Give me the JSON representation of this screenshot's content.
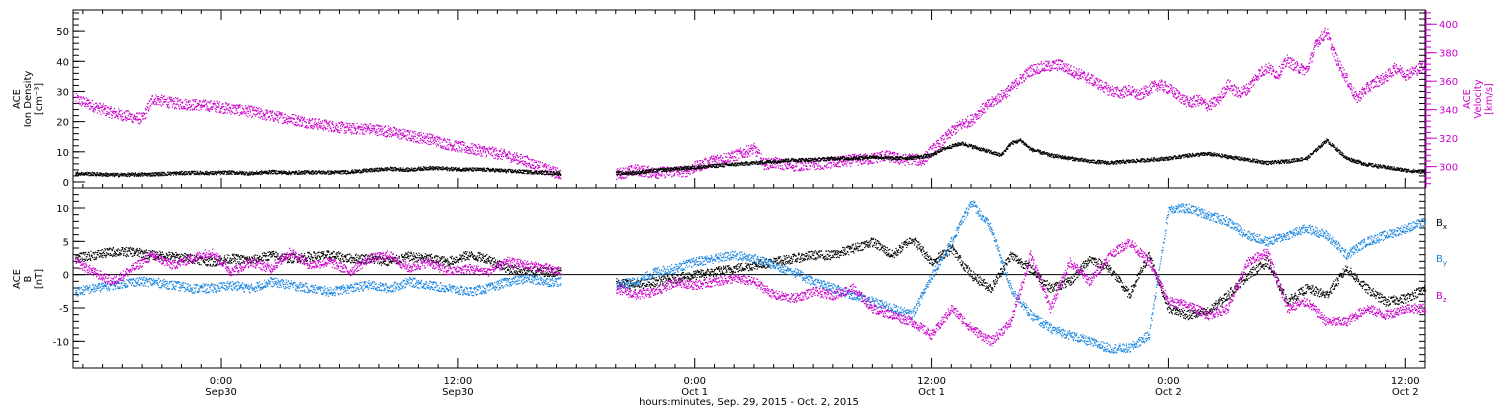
{
  "colors": {
    "black": "#000000",
    "magenta": "#cc00cc",
    "blue": "#1a86e0",
    "axis": "#000000"
  },
  "footer_label": "hours:minutes, Sep. 29, 2015 - Oct. 2, 2015",
  "time_axis": {
    "range_hours_from_sep29_00": [
      16.5,
      85.0
    ],
    "major_ticks": [
      {
        "hour": 24,
        "time": "0:00",
        "date": "Sep30"
      },
      {
        "hour": 36,
        "time": "12:00",
        "date": "Sep30"
      },
      {
        "hour": 48,
        "time": "0:00",
        "date": "Oct 1"
      },
      {
        "hour": 60,
        "time": "12:00",
        "date": "Oct 1"
      },
      {
        "hour": 72,
        "time": "0:00",
        "date": "Oct 2"
      },
      {
        "hour": 84,
        "time": "12:00",
        "date": "Oct 2"
      }
    ]
  },
  "chart_data": [
    {
      "type": "scatter",
      "panel": "top",
      "title": "",
      "ylabel": [
        "ACE",
        "Ion Density",
        "[cm⁻³]"
      ],
      "ylabel_right": [
        "ACE",
        "Velocity",
        "[km/s]"
      ],
      "ylim": [
        -2,
        57
      ],
      "yticks": [
        0,
        10,
        20,
        30,
        40,
        50
      ],
      "ylim_right": [
        285,
        410
      ],
      "yticks_right": [
        300,
        320,
        340,
        360,
        380,
        400
      ],
      "series": [
        {
          "color": "magenta",
          "axis": "right",
          "x": [
            16.6,
            17.5,
            18.5,
            19.5,
            20.0,
            20.5,
            21.5,
            22.5,
            23.5,
            24.5,
            25.5,
            26.5,
            27.5,
            28.5,
            29.5,
            30.5,
            31.5,
            32.5,
            33.5,
            34.5,
            35.5,
            36.5,
            37.5,
            38.5,
            39.5,
            40.0,
            40.5,
            41.2,
            44.0,
            45.0,
            46.0,
            47.0,
            47.5,
            48.0,
            49.0,
            50.0,
            51.0,
            51.5,
            52.0,
            53.0,
            54.0,
            55.0,
            56.0,
            57.0,
            57.5,
            58.0,
            58.5,
            59.0,
            59.5,
            60.0,
            60.5,
            61.0,
            61.5,
            62.0,
            62.5,
            63.0,
            63.5,
            64.0,
            64.5,
            65.0,
            65.5,
            66.0,
            66.5,
            67.0,
            67.5,
            68.0,
            68.5,
            69.0,
            69.5,
            70.0,
            70.5,
            71.0,
            71.5,
            72.0,
            72.5,
            73.0,
            73.5,
            74.0,
            74.5,
            75.0,
            75.5,
            76.0,
            76.5,
            77.0,
            77.5,
            78.0,
            78.5,
            79.0,
            79.5,
            80.0,
            80.5,
            81.0,
            81.5,
            82.0,
            82.5,
            83.0,
            83.5,
            84.0,
            84.5,
            85.0
          ],
          "y": [
            348,
            343,
            338,
            335,
            334,
            348,
            345,
            344,
            343,
            341,
            339,
            336,
            334,
            331,
            329,
            327,
            327,
            325,
            322,
            320,
            316,
            313,
            311,
            308,
            304,
            301,
            298,
            295,
            295,
            298,
            296,
            297,
            297,
            300,
            305,
            308,
            313,
            302,
            303,
            301,
            302,
            303,
            305,
            306,
            308,
            307,
            305,
            306,
            304,
            312,
            318,
            325,
            330,
            333,
            340,
            345,
            350,
            355,
            362,
            368,
            370,
            371,
            372,
            368,
            365,
            362,
            358,
            354,
            352,
            354,
            350,
            355,
            358,
            355,
            350,
            345,
            347,
            343,
            347,
            358,
            352,
            355,
            365,
            370,
            365,
            375,
            370,
            368,
            388,
            395,
            375,
            362,
            348,
            355,
            360,
            363,
            370,
            365,
            368,
            372
          ]
        },
        {
          "color": "black",
          "axis": "left",
          "x": [
            16.6,
            17.5,
            18.5,
            19.5,
            20.5,
            21.5,
            22.5,
            23.5,
            24.5,
            25.5,
            26.5,
            27.5,
            28.5,
            29.5,
            30.5,
            31.5,
            32.5,
            33.5,
            34.5,
            35.5,
            36.5,
            37.5,
            38.5,
            39.5,
            40.5,
            41.2,
            44.0,
            45.0,
            46.0,
            47.0,
            48.0,
            49.0,
            50.0,
            51.0,
            52.0,
            53.0,
            54.0,
            55.0,
            56.0,
            57.0,
            58.0,
            59.0,
            60.0,
            60.5,
            61.0,
            61.5,
            62.0,
            62.5,
            63.0,
            63.5,
            64.0,
            64.5,
            65.0,
            66.0,
            67.0,
            68.0,
            69.0,
            70.0,
            71.0,
            72.0,
            73.0,
            74.0,
            75.0,
            76.0,
            77.0,
            78.0,
            79.0,
            80.0,
            81.0,
            82.0,
            83.0,
            84.0,
            85.0
          ],
          "y": [
            3,
            2.8,
            2.5,
            2.6,
            2.7,
            3.0,
            3.2,
            3.1,
            3.3,
            3.0,
            3.5,
            3.2,
            3.4,
            3.3,
            3.5,
            4.0,
            4.5,
            4.2,
            4.8,
            4.5,
            4.3,
            4.2,
            3.8,
            3.5,
            3.2,
            3.0,
            3.0,
            3.2,
            4.0,
            4.5,
            5.0,
            5.5,
            6.0,
            6.5,
            7.0,
            7.5,
            7.5,
            8.0,
            8.0,
            8.5,
            8.0,
            8.2,
            9.0,
            11.0,
            12.0,
            13.0,
            12.0,
            11.0,
            10.0,
            9.0,
            13.0,
            14.0,
            11.0,
            9.0,
            8.0,
            7.0,
            6.5,
            7.0,
            7.5,
            8.0,
            9.0,
            9.5,
            8.5,
            7.5,
            6.5,
            7.0,
            8.0,
            14.0,
            8.0,
            6.0,
            5.0,
            4.0,
            3.5
          ]
        }
      ],
      "gaps": [
        [
          41.2,
          44.0
        ]
      ]
    },
    {
      "type": "scatter",
      "panel": "bottom",
      "title": "",
      "ylabel": [
        "ACE",
        "B",
        "[nT]"
      ],
      "ylim": [
        -14,
        13
      ],
      "yticks": [
        -10,
        -5,
        0,
        5,
        10
      ],
      "zero_line": true,
      "legend_position": "right",
      "series": [
        {
          "name": "Bx",
          "color": "black",
          "x": [
            16.6,
            17.5,
            18.5,
            19.5,
            20.5,
            21.5,
            22.5,
            23.5,
            24.5,
            25.5,
            26.5,
            27.5,
            28.5,
            29.5,
            30.5,
            31.5,
            32.5,
            33.5,
            34.5,
            35.5,
            36.5,
            37.5,
            38.5,
            39.5,
            40.5,
            41.2,
            44.0,
            45.0,
            46.0,
            47.0,
            48.0,
            49.0,
            50.0,
            51.0,
            52.0,
            53.0,
            54.0,
            55.0,
            56.0,
            57.0,
            58.0,
            59.0,
            60.0,
            61.0,
            62.0,
            63.0,
            64.0,
            65.0,
            66.0,
            67.0,
            68.0,
            69.0,
            70.0,
            71.0,
            72.0,
            73.0,
            74.0,
            75.0,
            76.0,
            77.0,
            78.0,
            79.0,
            80.0,
            81.0,
            82.0,
            83.0,
            84.0,
            85.0
          ],
          "y": [
            2.5,
            3.0,
            3.5,
            3.5,
            3.0,
            2.8,
            2.5,
            2.0,
            2.5,
            2.2,
            3.0,
            2.5,
            2.8,
            3.0,
            2.5,
            2.5,
            2.0,
            2.8,
            2.5,
            2.0,
            3.0,
            2.5,
            1.0,
            0.5,
            0.5,
            0.5,
            -1.0,
            -1.5,
            -1.0,
            -0.5,
            0.0,
            0.5,
            1.0,
            1.5,
            2.0,
            2.5,
            3.0,
            3.0,
            4.0,
            5.0,
            3.0,
            5.5,
            2.0,
            4.0,
            0.0,
            -2.0,
            3.0,
            1.0,
            -2.0,
            -1.0,
            2.5,
            1.0,
            -3.0,
            3.0,
            -5.0,
            -6.0,
            -5.5,
            -3.0,
            0.0,
            2.0,
            -4.0,
            -2.0,
            -3.0,
            1.0,
            -2.0,
            -4.0,
            -3.5,
            -2.0
          ]
        },
        {
          "name": "By",
          "color": "blue",
          "x": [
            16.6,
            17.5,
            18.5,
            19.5,
            20.5,
            21.5,
            22.5,
            23.5,
            24.5,
            25.5,
            26.5,
            27.5,
            28.5,
            29.5,
            30.5,
            31.5,
            32.5,
            33.5,
            34.5,
            35.5,
            36.5,
            37.5,
            38.5,
            39.5,
            40.5,
            41.2,
            44.0,
            45.0,
            46.0,
            47.0,
            48.0,
            49.0,
            50.0,
            51.0,
            52.0,
            53.0,
            54.0,
            55.0,
            56.0,
            57.0,
            58.0,
            59.0,
            60.0,
            61.0,
            62.0,
            63.0,
            64.0,
            65.0,
            66.0,
            67.0,
            68.0,
            69.0,
            70.0,
            71.0,
            72.0,
            73.0,
            74.0,
            75.0,
            76.0,
            77.0,
            78.0,
            79.0,
            80.0,
            81.0,
            82.0,
            83.0,
            84.0,
            85.0
          ],
          "y": [
            -2.5,
            -2.0,
            -1.5,
            -1.0,
            -1.0,
            -1.5,
            -2.0,
            -2.0,
            -1.5,
            -2.0,
            -1.0,
            -1.5,
            -2.0,
            -2.5,
            -2.0,
            -1.5,
            -2.0,
            -1.0,
            -1.5,
            -2.0,
            -2.5,
            -2.0,
            -1.0,
            -0.5,
            -1.0,
            -1.0,
            -1.5,
            -1.0,
            0.5,
            1.0,
            2.0,
            2.5,
            3.0,
            2.5,
            1.5,
            0.5,
            -1.0,
            -2.0,
            -3.0,
            -4.0,
            -5.0,
            -6.0,
            0.0,
            5.0,
            11.0,
            7.0,
            -2.0,
            -6.0,
            -8.0,
            -9.0,
            -10.0,
            -11.0,
            -11.0,
            -9.0,
            10.0,
            10.0,
            9.0,
            8.0,
            6.0,
            5.0,
            6.0,
            7.0,
            6.0,
            3.0,
            5.0,
            6.0,
            7.0,
            8.0
          ]
        },
        {
          "name": "Bz",
          "color": "magenta",
          "x": [
            16.6,
            17.5,
            18.5,
            19.5,
            20.5,
            21.5,
            22.5,
            23.5,
            24.5,
            25.5,
            26.5,
            27.5,
            28.5,
            29.5,
            30.5,
            31.5,
            32.5,
            33.5,
            34.5,
            35.5,
            36.5,
            37.5,
            38.5,
            39.5,
            40.5,
            41.2,
            44.0,
            45.0,
            46.0,
            47.0,
            48.0,
            49.0,
            50.0,
            51.0,
            52.0,
            53.0,
            54.0,
            55.0,
            56.0,
            57.0,
            58.0,
            59.0,
            60.0,
            61.0,
            62.0,
            63.0,
            64.0,
            65.0,
            66.0,
            67.0,
            68.0,
            69.0,
            70.0,
            71.0,
            72.0,
            73.0,
            74.0,
            75.0,
            76.0,
            77.0,
            78.0,
            79.0,
            80.0,
            81.0,
            82.0,
            83.0,
            84.0,
            85.0
          ],
          "y": [
            2.0,
            0.5,
            -1.0,
            1.0,
            3.0,
            1.5,
            2.5,
            3.5,
            0.5,
            2.0,
            1.0,
            3.5,
            1.5,
            2.0,
            0.5,
            2.5,
            3.0,
            1.0,
            2.0,
            0.5,
            1.0,
            0.5,
            2.0,
            1.5,
            1.0,
            0.5,
            -2.0,
            -3.0,
            -2.5,
            -1.0,
            -1.5,
            -1.0,
            -0.5,
            -1.0,
            -3.0,
            -3.5,
            -2.5,
            -3.0,
            -2.0,
            -5.0,
            -6.0,
            -7.0,
            -9.0,
            -5.0,
            -8.0,
            -10.0,
            -7.0,
            3.0,
            -5.0,
            2.0,
            -1.0,
            3.0,
            5.0,
            2.0,
            -4.0,
            -4.5,
            -6.0,
            -5.0,
            2.0,
            3.5,
            -5.0,
            -4.0,
            -7.0,
            -7.0,
            -5.0,
            -6.0,
            -5.0,
            -5.0
          ]
        }
      ],
      "legend": [
        {
          "base": "B",
          "sub": "x",
          "color": "black"
        },
        {
          "base": "B",
          "sub": "y",
          "color": "blue"
        },
        {
          "base": "B",
          "sub": "z",
          "color": "magenta"
        }
      ],
      "gaps": [
        [
          41.2,
          44.0
        ]
      ]
    }
  ]
}
